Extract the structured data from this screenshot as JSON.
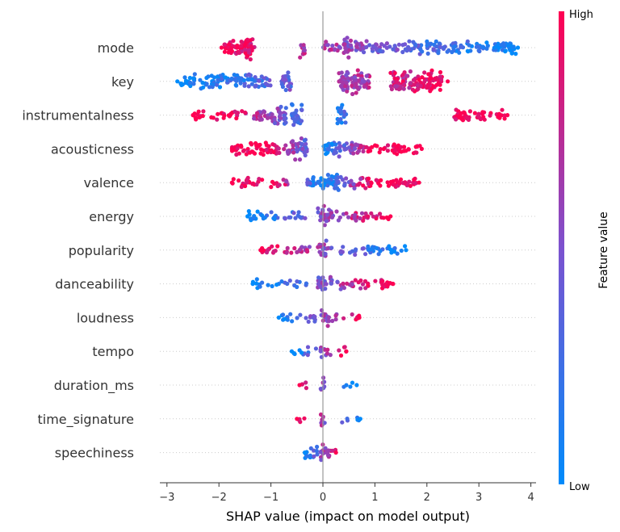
{
  "chart_data": {
    "type": "scatter",
    "subtype": "shap-beeswarm",
    "title": "",
    "xlabel": "SHAP value (impact on model output)",
    "xlim": [
      -3.1,
      4.1
    ],
    "xticks": [
      -3,
      -2,
      -1,
      0,
      1,
      2,
      3,
      4
    ],
    "xtick_labels": [
      "−3",
      "−2",
      "−1",
      "0",
      "1",
      "2",
      "3",
      "4"
    ],
    "zero_line": true,
    "grid": false,
    "features": [
      {
        "name": "mode",
        "min": -1.95,
        "max": 3.75,
        "low_side": "positive",
        "density": [
          [
            -1.95,
            -1.3,
            0.55
          ],
          [
            -1.5,
            -1.35,
            1.0
          ],
          [
            -0.45,
            -0.35,
            0.8
          ],
          [
            0.4,
            0.55,
            0.8
          ],
          [
            0.0,
            3.75,
            0.35
          ]
        ]
      },
      {
        "name": "key",
        "min": -2.8,
        "max": 2.4,
        "low_side": "negative",
        "density": [
          [
            -2.8,
            -1.0,
            0.45
          ],
          [
            -0.8,
            -0.6,
            0.7
          ],
          [
            0.3,
            0.9,
            1.0
          ],
          [
            1.3,
            2.3,
            0.8
          ]
        ]
      },
      {
        "name": "instrumentalness",
        "min": -2.5,
        "max": 3.55,
        "low_side": "center",
        "density": [
          [
            -2.5,
            -1.0,
            0.25
          ],
          [
            -1.0,
            -0.7,
            0.7
          ],
          [
            -0.6,
            -0.4,
            1.0
          ],
          [
            0.25,
            0.45,
            0.8
          ],
          [
            2.5,
            3.55,
            0.3
          ]
        ]
      },
      {
        "name": "acousticness",
        "min": -1.75,
        "max": 1.9,
        "low_side": "center",
        "density": [
          [
            -1.75,
            -0.6,
            0.4
          ],
          [
            -0.6,
            -0.3,
            0.8
          ],
          [
            0.0,
            0.6,
            0.55
          ],
          [
            0.6,
            1.9,
            0.3
          ]
        ]
      },
      {
        "name": "valence",
        "min": -1.75,
        "max": 1.85,
        "low_side": "center",
        "density": [
          [
            -1.75,
            -0.5,
            0.2
          ],
          [
            -0.3,
            0.3,
            0.6
          ],
          [
            0.2,
            1.85,
            0.3
          ]
        ]
      },
      {
        "name": "energy",
        "min": -1.45,
        "max": 1.3,
        "low_side": "negative",
        "density": [
          [
            -1.45,
            -0.3,
            0.2
          ],
          [
            -0.1,
            0.2,
            0.7
          ],
          [
            0.2,
            1.3,
            0.2
          ]
        ]
      },
      {
        "name": "popularity",
        "min": -1.2,
        "max": 1.6,
        "low_side": "positive",
        "density": [
          [
            -1.2,
            -0.2,
            0.25
          ],
          [
            -0.1,
            0.1,
            0.7
          ],
          [
            0.1,
            1.6,
            0.2
          ]
        ]
      },
      {
        "name": "danceability",
        "min": -1.35,
        "max": 1.35,
        "low_side": "negative",
        "density": [
          [
            -1.35,
            -0.3,
            0.15
          ],
          [
            -0.1,
            0.15,
            0.6
          ],
          [
            0.15,
            1.35,
            0.25
          ]
        ]
      },
      {
        "name": "loudness",
        "min": -0.85,
        "max": 0.7,
        "low_side": "negative",
        "density": [
          [
            -0.85,
            -0.1,
            0.2
          ],
          [
            -0.08,
            0.1,
            0.55
          ],
          [
            0.1,
            0.7,
            0.15
          ]
        ]
      },
      {
        "name": "tempo",
        "min": -0.6,
        "max": 0.45,
        "low_side": "negative",
        "density": [
          [
            -0.6,
            -0.1,
            0.15
          ],
          [
            -0.05,
            0.08,
            0.45
          ],
          [
            0.08,
            0.45,
            0.15
          ]
        ]
      },
      {
        "name": "duration_ms",
        "min": -0.45,
        "max": 0.65,
        "low_side": "positive",
        "density": [
          [
            -0.45,
            -0.3,
            0.15
          ],
          [
            -0.05,
            0.05,
            0.5
          ],
          [
            0.4,
            0.65,
            0.05
          ]
        ]
      },
      {
        "name": "time_signature",
        "min": -0.5,
        "max": 0.72,
        "low_side": "positive",
        "density": [
          [
            -0.5,
            -0.3,
            0.1
          ],
          [
            -0.05,
            0.05,
            0.55
          ],
          [
            0.3,
            0.72,
            0.1
          ]
        ]
      },
      {
        "name": "speechiness",
        "min": -0.35,
        "max": 0.25,
        "low_side": "negative",
        "density": [
          [
            -0.35,
            -0.05,
            0.3
          ],
          [
            -0.05,
            0.05,
            0.7
          ],
          [
            0.05,
            0.25,
            0.35
          ]
        ]
      }
    ],
    "colorbar": {
      "title": "Feature value",
      "high_label": "High",
      "low_label": "Low",
      "low_color": "#008bfb",
      "high_color": "#ff0052"
    }
  }
}
